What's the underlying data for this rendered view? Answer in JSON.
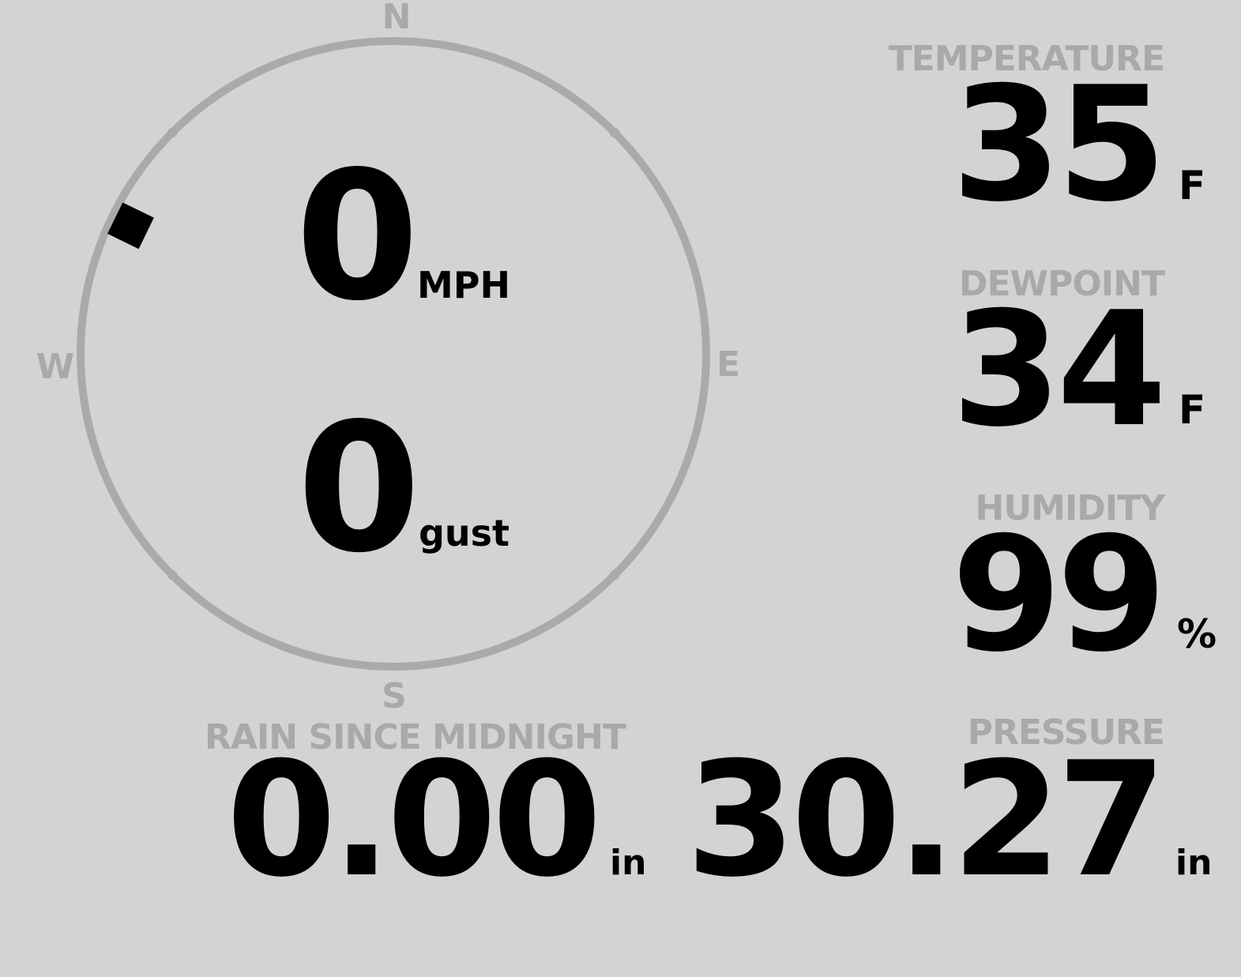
{
  "wind": {
    "speed": "0",
    "speed_unit": "MPH",
    "gust": "0",
    "gust_unit": "gust",
    "direction_degrees": 296,
    "compass": {
      "n": "N",
      "e": "E",
      "s": "S",
      "w": "W"
    }
  },
  "temperature": {
    "label": "TEMPERATURE",
    "value": "35",
    "unit": "F"
  },
  "dewpoint": {
    "label": "DEWPOINT",
    "value": "34",
    "unit": "F"
  },
  "humidity": {
    "label": "HUMIDITY",
    "value": "99",
    "unit": "%"
  },
  "pressure": {
    "label": "PRESSURE",
    "value": "30.27",
    "unit": "in"
  },
  "rain": {
    "label": "RAIN SINCE MIDNIGHT",
    "value": "0.00",
    "unit": "in"
  },
  "colors": {
    "background": "#d3d3d3",
    "label": "#a9a9a9",
    "value": "#000000",
    "compass_ring": "#aaaaaa"
  }
}
